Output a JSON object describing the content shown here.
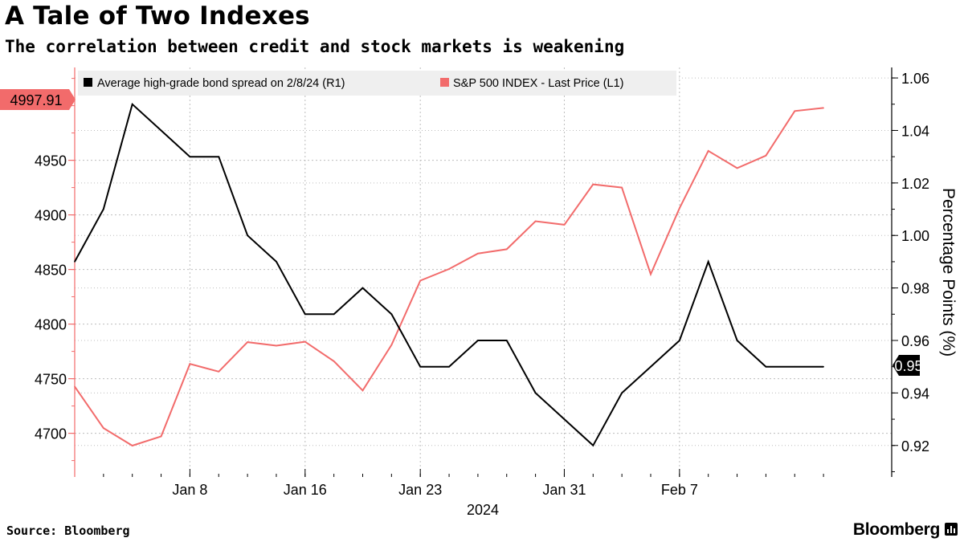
{
  "header": {
    "title": "A Tale of Two Indexes",
    "subtitle": "The correlation between credit and stock markets is weakening"
  },
  "footer": {
    "source": "Source: Bloomberg",
    "brand": "Bloomberg"
  },
  "colors": {
    "spx": "#f26b6b",
    "spread": "#000000",
    "axis": "#000000",
    "grid": "#bdbdbd",
    "legend_bg": "#efefef"
  },
  "chart_data": {
    "type": "line",
    "title": "A Tale of Two Indexes",
    "subtitle": "The correlation between credit and stock markets is weakening",
    "x_label": "2024",
    "x_ticks": [
      "Jan 8",
      "Jan 16",
      "Jan 23",
      "Jan 31",
      "Feb 7"
    ],
    "x_tick_index": [
      4,
      8,
      12,
      17,
      21
    ],
    "y_left": {
      "ylim": [
        4660,
        5035
      ],
      "ticks": [
        4700,
        4750,
        4800,
        4850,
        4900,
        4950
      ]
    },
    "y_right": {
      "label": "Percentage Points (%)",
      "ylim": [
        0.908,
        1.064
      ],
      "ticks": [
        "0.92",
        "0.94",
        "0.96",
        "0.98",
        "1.00",
        "1.02",
        "1.04",
        "1.06"
      ]
    },
    "dates": [
      "Jan 2",
      "Jan 3",
      "Jan 4",
      "Jan 5",
      "Jan 8",
      "Jan 9",
      "Jan 10",
      "Jan 11",
      "Jan 12",
      "Jan 16",
      "Jan 17",
      "Jan 18",
      "Jan 19",
      "Jan 22",
      "Jan 23",
      "Jan 24",
      "Jan 25",
      "Jan 26",
      "Jan 29",
      "Jan 30",
      "Jan 31",
      "Feb 1",
      "Feb 2",
      "Feb 5",
      "Feb 6",
      "Feb 7",
      "Feb 8"
    ],
    "series": [
      {
        "name": "S&P 500 INDEX - Last Price (L1)",
        "axis": "left",
        "legend": "S&P 500 INDEX - Last Price (L1)",
        "last_label": "4997.91",
        "x": [
          0,
          1,
          2,
          3,
          4,
          5,
          6,
          7,
          8,
          9,
          10,
          11,
          12,
          13,
          14,
          15,
          16,
          17,
          18,
          19,
          20,
          21,
          22,
          23,
          24,
          25,
          26
        ],
        "values": [
          4742.83,
          4704.81,
          4688.68,
          4697.24,
          4763.54,
          4756.5,
          4783.45,
          4780.24,
          4783.83,
          4765.98,
          4739.21,
          4780.94,
          4839.81,
          4850.43,
          4864.6,
          4868.55,
          4894.16,
          4890.97,
          4927.93,
          4924.97,
          4845.65,
          4906.19,
          4958.61,
          4942.81,
          4954.23,
          4995.06,
          4997.91
        ]
      },
      {
        "name": "Average high-grade bond spread on 2/8/24 (R1)",
        "axis": "right",
        "legend": "Average high-grade bond spread on 2/8/24 (R1)",
        "last_label": "0.95",
        "x": [
          0,
          1,
          2,
          3,
          4,
          5,
          6,
          7,
          8,
          9,
          10,
          11,
          12,
          13,
          14,
          15,
          16,
          17,
          18,
          19,
          20,
          21,
          22,
          23,
          24,
          25,
          26
        ],
        "values": [
          0.99,
          1.01,
          1.05,
          1.04,
          1.03,
          1.03,
          1.0,
          0.99,
          0.97,
          0.97,
          0.98,
          0.97,
          0.95,
          0.95,
          0.96,
          0.96,
          0.94,
          0.93,
          0.92,
          0.94,
          0.95,
          0.96,
          0.99,
          0.96,
          0.95,
          0.95,
          0.95
        ]
      }
    ]
  }
}
